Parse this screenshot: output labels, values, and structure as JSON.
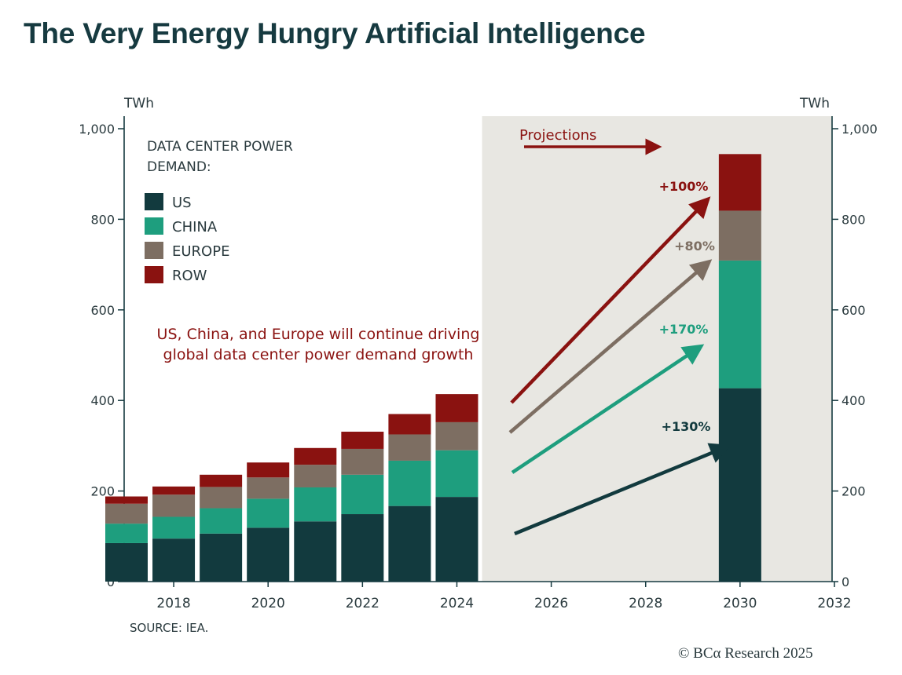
{
  "page": {
    "title": "The Very Energy Hungry Artificial Intelligence"
  },
  "chart_data": {
    "type": "bar",
    "stacked": true,
    "title": "The Very Energy Hungry Artificial Intelligence",
    "legend_title": "DATA CENTER POWER DEMAND:",
    "legend_title_lines": [
      "DATA CENTER POWER",
      "DEMAND:"
    ],
    "ylabel_left": "TWh",
    "ylabel_right": "TWh",
    "ylim": [
      0,
      1000
    ],
    "yticks": [
      0,
      200,
      400,
      600,
      800,
      1000
    ],
    "ytick_labels": [
      "0",
      "200",
      "400",
      "600",
      "800",
      "1,000"
    ],
    "xlim": [
      2017,
      2032
    ],
    "xticks": [
      2018,
      2020,
      2022,
      2024,
      2026,
      2028,
      2030,
      2032
    ],
    "xtick_labels": [
      "2018",
      "2020",
      "2022",
      "2024",
      "2026",
      "2028",
      "2030",
      "2032"
    ],
    "projection_start": 2025,
    "projection_label": "Projections",
    "categories": [
      "2017",
      "2018",
      "2019",
      "2020",
      "2021",
      "2022",
      "2023",
      "2024",
      "2030"
    ],
    "x": [
      2017,
      2018,
      2019,
      2020,
      2021,
      2022,
      2023,
      2024,
      2030
    ],
    "series": [
      {
        "name": "US",
        "color": "#123a3e",
        "values": [
          85,
          95,
          106,
          119,
          133,
          149,
          167,
          187,
          427
        ]
      },
      {
        "name": "CHINA",
        "color": "#1e9e7e",
        "values": [
          43,
          48,
          56,
          64,
          75,
          87,
          100,
          103,
          282
        ]
      },
      {
        "name": "EUROPE",
        "color": "#7d6e62",
        "values": [
          44,
          49,
          47,
          47,
          50,
          57,
          58,
          62,
          110
        ]
      },
      {
        "name": "ROW",
        "color": "#8a1210",
        "values": [
          16,
          18,
          27,
          33,
          37,
          38,
          45,
          62,
          125
        ]
      }
    ],
    "annotation": "US, China, and Europe will continue driving global data center power demand growth",
    "annotation_lines": [
      "US, China, and Europe will continue driving",
      "global data center power demand growth"
    ],
    "growth_arrows": [
      {
        "series": "ROW",
        "label": "+100%",
        "color": "#8a1210"
      },
      {
        "series": "EUROPE",
        "label": "+80%",
        "color": "#7d6e62"
      },
      {
        "series": "CHINA",
        "label": "+170%",
        "color": "#1e9e7e"
      },
      {
        "series": "US",
        "label": "+130%",
        "color": "#123a3e"
      }
    ],
    "source": "SOURCE: IEA."
  },
  "footer": {
    "copyright": "© BCα Research 2025"
  },
  "colors": {
    "title": "#163a40",
    "axis": "#163a40",
    "projection_bg": "#e8e7e2"
  }
}
